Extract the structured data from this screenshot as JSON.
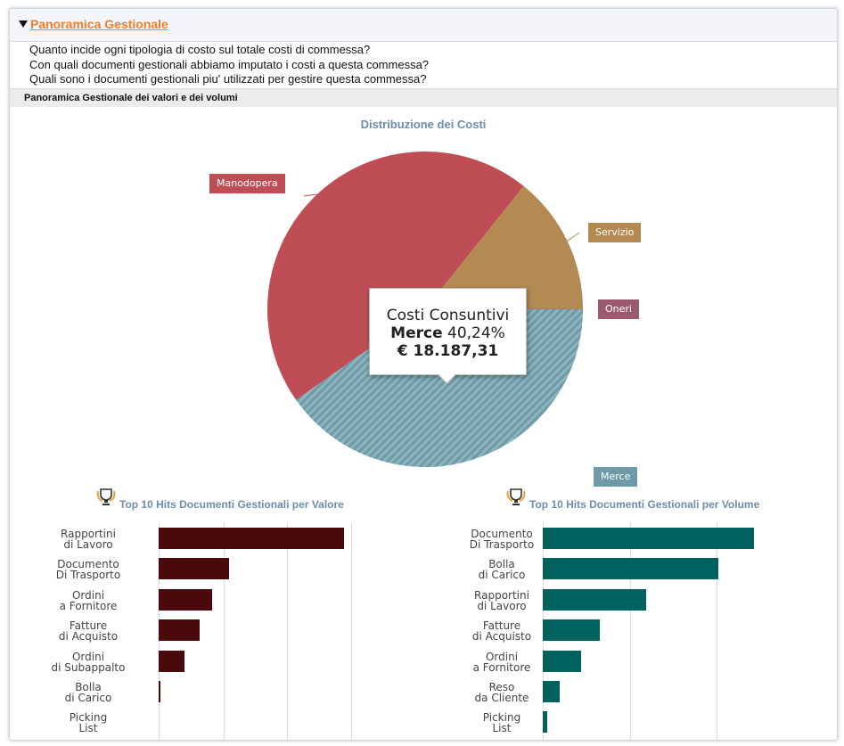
{
  "header": {
    "title": "Panoramica Gestionale"
  },
  "questions": [
    "Quanto incide ogni tipologia di costo sul totale costi di commessa?",
    "Con quali documenti gestionali abbiamo imputato i costi a questa commessa?",
    "Quali sono i documenti gestionali piu' utilizzati per gestire questa commessa?"
  ],
  "section": {
    "title": "Panoramica Gestionale dei valori e dei volumi"
  },
  "pie_chart": {
    "title": "Distribuzione dei Costi",
    "tooltip": {
      "line1": "Costi Consuntivi",
      "category": "Merce",
      "percent": "40,24%",
      "amount": "€ 18.187,31"
    }
  },
  "bar_left": {
    "title": "Top 10 Hits Documenti Gestionali per Valore"
  },
  "bar_right": {
    "title": "Top 10 Hits Documenti Gestionali per Volume"
  },
  "chart_data": [
    {
      "type": "pie",
      "title": "Distribuzione dei Costi",
      "labels": [
        "Manodopera",
        "Servizio",
        "Oneri",
        "Merce"
      ],
      "values": [
        45.5,
        14.26,
        0.0,
        40.24
      ],
      "colors": [
        "#bf4d56",
        "#b38a52",
        "#9c5a6e",
        "#6d9aa6"
      ]
    },
    {
      "type": "bar",
      "orientation": "horizontal",
      "title": "Top 10 Hits Documenti Gestionali per Valore",
      "categories": [
        [
          "Rapportini",
          "di Lavoro"
        ],
        [
          "Documento",
          "Di Trasporto"
        ],
        [
          "Ordini",
          "a Fornitore"
        ],
        [
          "Fatture",
          "di Acquisto"
        ],
        [
          "Ordini",
          "di Subappalto"
        ],
        [
          "Bolla",
          "di Carico"
        ],
        [
          "Picking",
          "List"
        ]
      ],
      "values": [
        100,
        38,
        29,
        22,
        14,
        1,
        0
      ],
      "color": "#4a0a0c"
    },
    {
      "type": "bar",
      "orientation": "horizontal",
      "title": "Top 10 Hits Documenti Gestionali per Volume",
      "categories": [
        [
          "Documento",
          "Di Trasporto"
        ],
        [
          "Bolla",
          "di Carico"
        ],
        [
          "Rapportini",
          "di Lavoro"
        ],
        [
          "Fatture",
          "di Acquisto"
        ],
        [
          "Ordini",
          "a Fornitore"
        ],
        [
          "Reso",
          "da Cliente"
        ],
        [
          "Picking",
          "List"
        ]
      ],
      "values": [
        100,
        83,
        49,
        27,
        18,
        8,
        2
      ],
      "color": "#00625f"
    }
  ]
}
